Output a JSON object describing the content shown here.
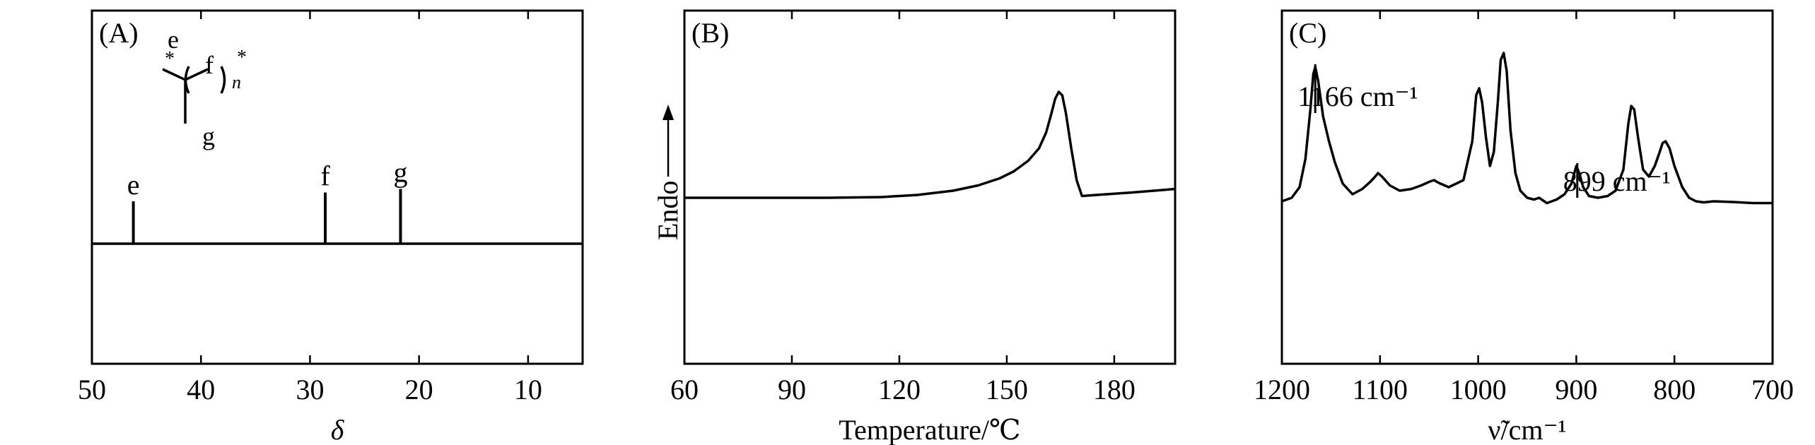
{
  "chart_data": [
    {
      "type": "line",
      "panel": "A",
      "panel_label": "(A)",
      "xlabel": "δ",
      "xlim": [
        50,
        5
      ],
      "x_ticks": [
        50,
        40,
        30,
        20,
        10
      ],
      "peaks": [
        {
          "x": 46.2,
          "height": 0.24,
          "label": "e"
        },
        {
          "x": 28.6,
          "height": 0.29,
          "label": "f"
        },
        {
          "x": 21.7,
          "height": 0.31,
          "label": "g"
        }
      ],
      "structure_labels": {
        "top": "e",
        "center": "f",
        "bottom": "g",
        "repeat": "n",
        "end": "*"
      }
    },
    {
      "type": "line",
      "panel": "B",
      "panel_label": "(B)",
      "xlabel": "Temperature/℃",
      "ylabel": "Endo",
      "xlim": [
        60,
        197
      ],
      "x_ticks": [
        60,
        90,
        120,
        150,
        180
      ],
      "series": [
        {
          "x": [
            60,
            80,
            100,
            115,
            125,
            135,
            142,
            148,
            152,
            156,
            159,
            161,
            162.5,
            163.5,
            164.5,
            165.5,
            166.5,
            168,
            169.5,
            171,
            175,
            185,
            197
          ],
          "y": [
            0.47,
            0.47,
            0.47,
            0.472,
            0.478,
            0.49,
            0.505,
            0.525,
            0.545,
            0.575,
            0.61,
            0.655,
            0.71,
            0.75,
            0.77,
            0.76,
            0.71,
            0.61,
            0.52,
            0.475,
            0.478,
            0.485,
            0.495
          ]
        }
      ]
    },
    {
      "type": "line",
      "panel": "C",
      "panel_label": "(C)",
      "xlabel": "ν̃/cm⁻¹",
      "xlim": [
        1200,
        700
      ],
      "x_ticks": [
        1200,
        1100,
        1000,
        900,
        800,
        700
      ],
      "annotations": [
        {
          "text": "1166 cm⁻¹",
          "x": 1166
        },
        {
          "text": "899 cm⁻¹",
          "x": 899
        }
      ],
      "series": [
        {
          "x": [
            1200,
            1190,
            1182,
            1176,
            1171,
            1168,
            1166,
            1163,
            1158,
            1152,
            1146,
            1138,
            1128,
            1118,
            1110,
            1105,
            1102,
            1098,
            1090,
            1080,
            1068,
            1058,
            1050,
            1045,
            1040,
            1030,
            1015,
            1006,
            1002,
            999,
            996,
            992,
            988,
            984,
            980,
            977,
            974,
            971,
            967,
            962,
            957,
            950,
            943,
            938,
            930,
            920,
            912,
            905,
            900,
            897,
            893,
            887,
            878,
            868,
            860,
            852,
            847,
            844,
            841,
            837,
            832,
            826,
            820,
            815,
            812,
            809,
            805,
            800,
            792,
            785,
            778,
            770,
            760,
            740,
            720,
            700
          ],
          "y": [
            0.46,
            0.47,
            0.5,
            0.58,
            0.72,
            0.82,
            0.84,
            0.8,
            0.7,
            0.63,
            0.57,
            0.51,
            0.48,
            0.495,
            0.515,
            0.53,
            0.54,
            0.53,
            0.505,
            0.49,
            0.495,
            0.505,
            0.515,
            0.52,
            0.512,
            0.5,
            0.52,
            0.63,
            0.76,
            0.78,
            0.74,
            0.64,
            0.56,
            0.6,
            0.74,
            0.86,
            0.88,
            0.83,
            0.66,
            0.54,
            0.49,
            0.47,
            0.465,
            0.47,
            0.455,
            0.465,
            0.48,
            0.51,
            0.56,
            0.54,
            0.5,
            0.475,
            0.47,
            0.475,
            0.49,
            0.55,
            0.68,
            0.73,
            0.72,
            0.64,
            0.55,
            0.53,
            0.56,
            0.6,
            0.625,
            0.63,
            0.61,
            0.56,
            0.5,
            0.47,
            0.46,
            0.457,
            0.46,
            0.458,
            0.455,
            0.455
          ]
        }
      ]
    }
  ]
}
